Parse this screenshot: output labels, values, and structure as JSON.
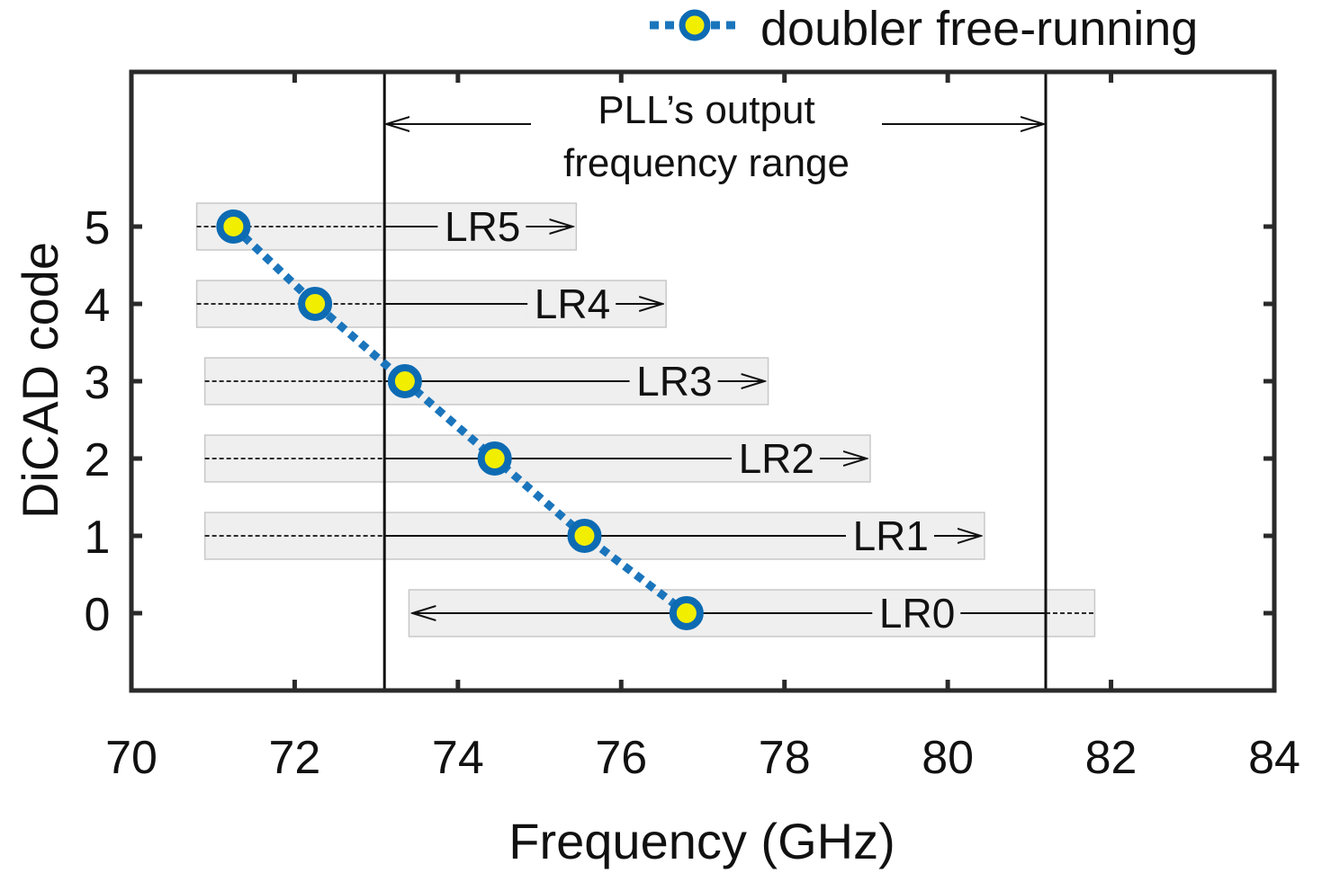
{
  "chart_data": {
    "type": "scatter",
    "title": "",
    "xlabel": "Frequency (GHz)",
    "ylabel": "DiCAD code",
    "xlim": [
      70,
      84
    ],
    "ylim": [
      -1,
      7
    ],
    "xticks": [
      70,
      72,
      74,
      76,
      78,
      80,
      82,
      84
    ],
    "yticks": [
      0,
      1,
      2,
      3,
      4,
      5
    ],
    "series": [
      {
        "name": "doubler free-running",
        "x": [
          71.25,
          72.25,
          73.35,
          74.45,
          75.55,
          76.8
        ],
        "y": [
          5,
          4,
          3,
          2,
          1,
          0
        ]
      }
    ],
    "pll_range": {
      "start": 73.1,
      "end": 81.2,
      "label_line1": "PLL’s output",
      "label_line2": "frequency range"
    },
    "lock_ranges": [
      {
        "label": "LR5",
        "code": 5,
        "start": 70.8,
        "end": 75.45,
        "pll_edge": 73.1,
        "direction": "right"
      },
      {
        "label": "LR4",
        "code": 4,
        "start": 70.8,
        "end": 76.55,
        "pll_edge": 73.1,
        "direction": "right"
      },
      {
        "label": "LR3",
        "code": 3,
        "start": 70.9,
        "end": 77.8,
        "pll_edge": 73.1,
        "direction": "right"
      },
      {
        "label": "LR2",
        "code": 2,
        "start": 70.9,
        "end": 79.05,
        "pll_edge": 73.1,
        "direction": "right"
      },
      {
        "label": "LR1",
        "code": 1,
        "start": 70.9,
        "end": 80.45,
        "pll_edge": 73.1,
        "direction": "right"
      },
      {
        "label": "LR0",
        "code": 0,
        "start": 73.4,
        "end": 81.8,
        "pll_edge": 81.2,
        "direction": "left"
      }
    ],
    "legend": {
      "entries": [
        "doubler free-running"
      ],
      "position": "top-right",
      "outside": true
    }
  },
  "colors": {
    "series_line": "#1a75bc",
    "marker_edge": "#0d6bb3",
    "marker_face": "#f2ee00",
    "band_fill": "#efefef",
    "band_edge": "#c8c8c8",
    "axis": "#2a2a2a"
  }
}
